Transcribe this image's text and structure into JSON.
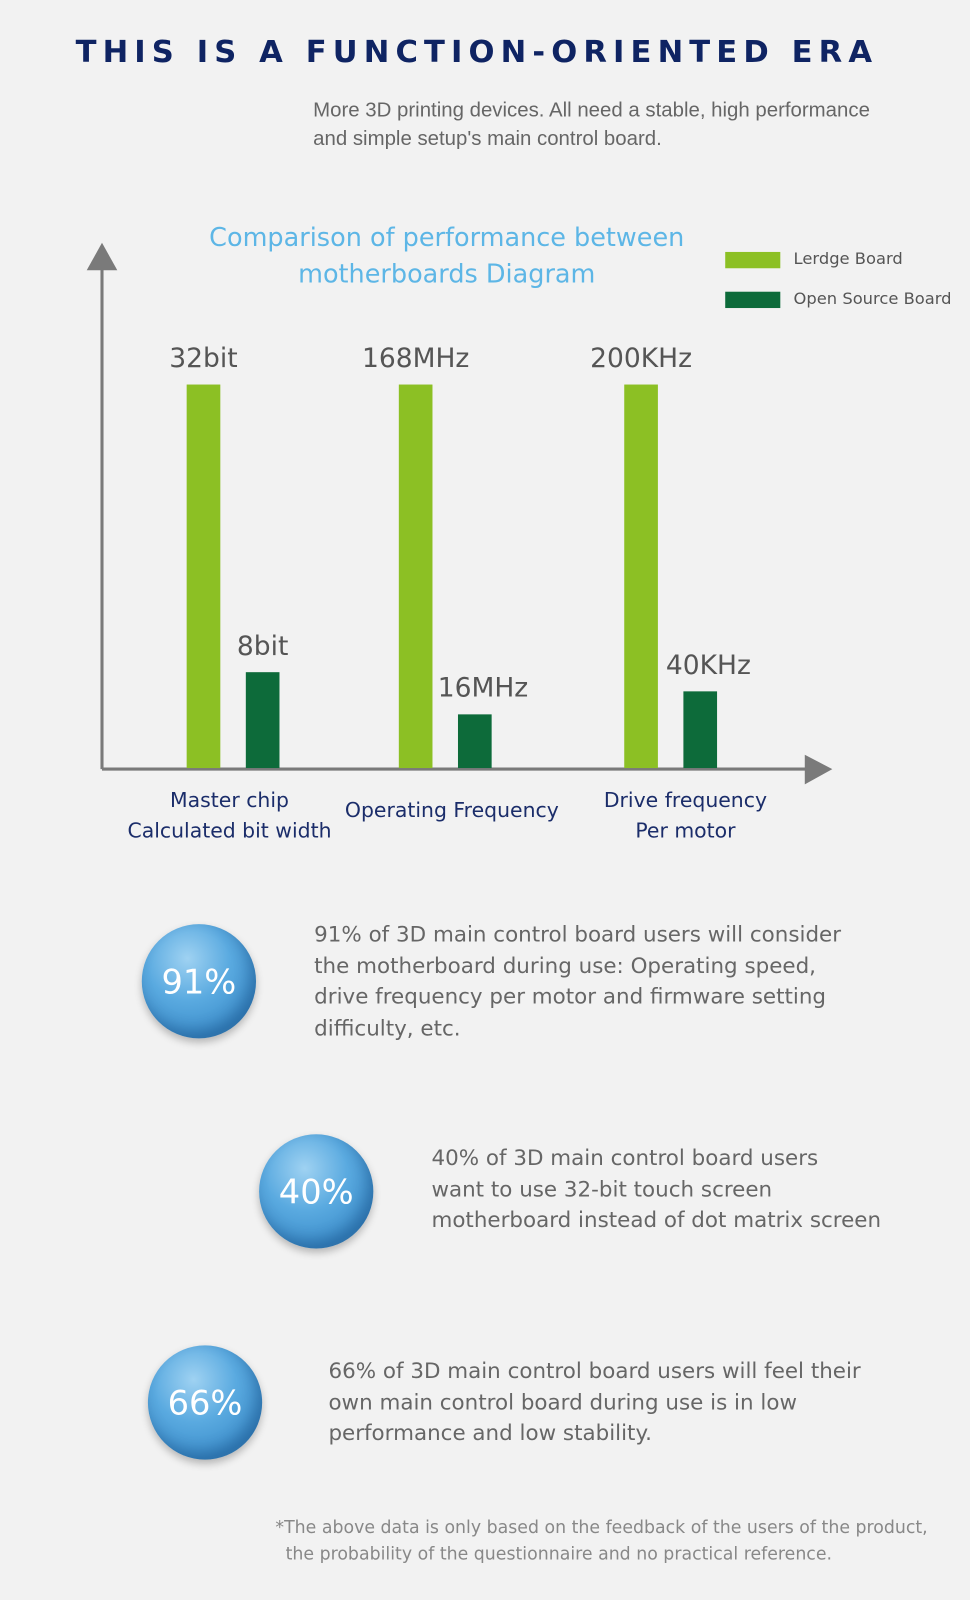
{
  "header": {
    "title": "THIS IS A FUNCTION-ORIENTED ERA",
    "subtitle_lines": [
      "More 3D printing devices. All need a stable, high performance",
      "and simple setup's main control board."
    ]
  },
  "chart_data": {
    "type": "bar",
    "title_lines": [
      "Comparison of performance between",
      "motherboards Diagram"
    ],
    "categories": [
      [
        "Master chip",
        "Calculated bit width"
      ],
      [
        "Operating Frequency"
      ],
      [
        "Drive frequency",
        "Per motor"
      ]
    ],
    "series": [
      {
        "name": "Lerdge Board",
        "color": "#8cc024",
        "values": [
          32,
          168,
          200
        ],
        "labels": [
          "32bit",
          "168MHz",
          "200KHz"
        ]
      },
      {
        "name": "Open Source Board",
        "color": "#0d6b3a",
        "values": [
          8,
          16,
          40
        ],
        "labels": [
          "8bit",
          "16MHz",
          "40KHz"
        ]
      }
    ],
    "legend": "top-right",
    "grid": false,
    "axis_color": "#7a7a7a"
  },
  "stats": [
    {
      "percent": "91%",
      "lines": [
        "91% of 3D main control board users will consider",
        "the motherboard during use: Operating speed,",
        "drive frequency per motor and firmware setting",
        "difficulty, etc."
      ]
    },
    {
      "percent": "40%",
      "lines": [
        "40% of 3D main control board users",
        "want to use 32-bit touch screen",
        "motherboard instead of dot matrix screen"
      ]
    },
    {
      "percent": "66%",
      "lines": [
        "66% of 3D main control board users will feel their",
        "own main control board during use is in low",
        "performance and low stability."
      ]
    }
  ],
  "footnote": [
    "*The above data is only based on the feedback of the users of the product,",
    "the probability of the questionnaire and no practical reference."
  ]
}
